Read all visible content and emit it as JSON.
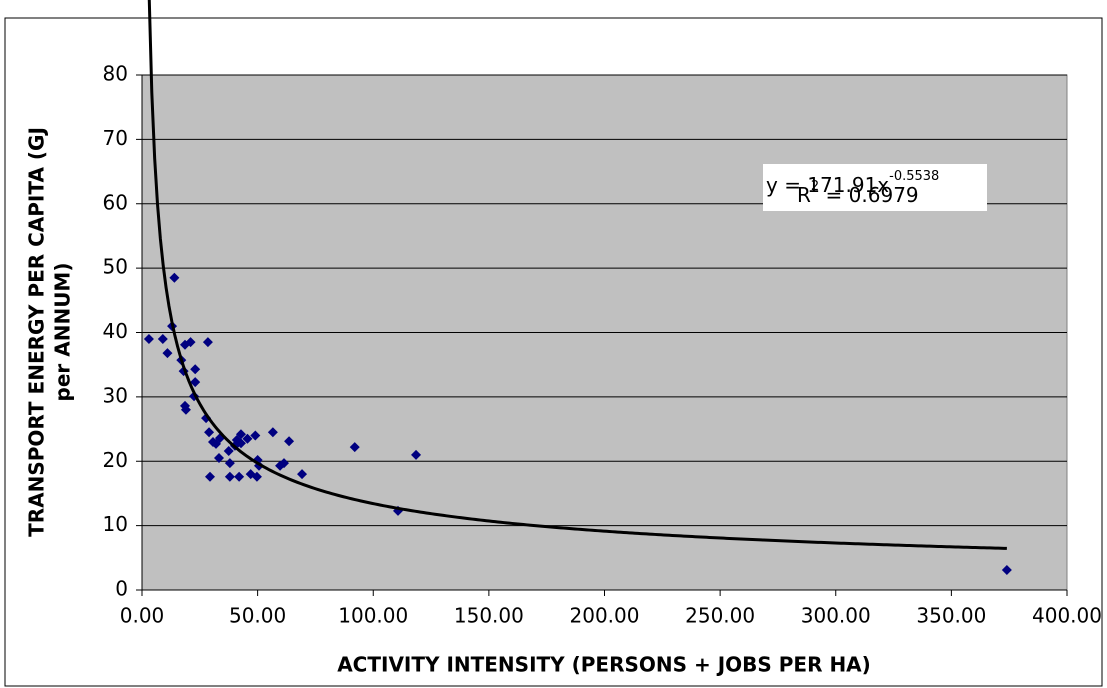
{
  "chart_data": {
    "type": "scatter",
    "xlabel": "ACTIVITY INTENSITY (PERSONS + JOBS PER HA)",
    "ylabel": [
      "TRANSPORT ENERGY PER CAPITA (GJ",
      "per ANNUM)"
    ],
    "x": [
      3,
      9,
      11,
      13,
      14,
      17,
      18,
      18.6,
      18.6,
      19,
      21,
      23,
      23,
      22.5,
      28.5,
      27.7,
      29,
      29.4,
      30.7,
      32,
      33.7,
      33.3,
      38,
      37.5,
      38,
      40.2,
      41,
      42.8,
      42.8,
      42,
      45.6,
      47,
      49,
      50,
      50.6,
      49.7,
      56.6,
      59.7,
      61.4,
      63.6,
      69.2,
      92,
      118.5,
      110.7,
      374
    ],
    "series": [
      {
        "color": "#000080",
        "values": [
          39,
          39,
          36.8,
          41,
          48.5,
          35.7,
          34,
          38.1,
          28.6,
          28,
          38.5,
          34.3,
          32.3,
          30.1,
          38.5,
          26.7,
          24.5,
          17.6,
          23,
          22.7,
          23.6,
          20.5,
          19.7,
          21.6,
          17.6,
          22.4,
          23.3,
          24.2,
          22.8,
          17.6,
          23.5,
          18,
          24,
          20.2,
          19.3,
          17.6,
          24.5,
          19.3,
          19.7,
          23.1,
          18,
          22.2,
          21,
          12.3,
          3.1
        ]
      }
    ],
    "trendline": {
      "a": 171.91,
      "b": -0.5538,
      "color": "#000000",
      "equation": "y = 171.91x",
      "exponent": "-0.5538",
      "r2_symbol": "R",
      "r2_power": "2",
      "r2_text": " = 0.6979"
    },
    "xlim": [
      0,
      400
    ],
    "xticks": [
      {
        "value": 0,
        "label": "0.00"
      },
      {
        "value": 50,
        "label": "50.00"
      },
      {
        "value": 100,
        "label": "100.00"
      },
      {
        "value": 150,
        "label": "150.00"
      },
      {
        "value": 200,
        "label": "200.00"
      },
      {
        "value": 250,
        "label": "250.00"
      },
      {
        "value": 300,
        "label": "300.00"
      },
      {
        "value": 350,
        "label": "350.00"
      },
      {
        "value": 400,
        "label": "400.00"
      }
    ],
    "ylim": [
      0,
      80
    ],
    "yticks": [
      0,
      10,
      20,
      30,
      40,
      50,
      60,
      70,
      80
    ],
    "grid": true,
    "background": "#c0c0c0"
  }
}
